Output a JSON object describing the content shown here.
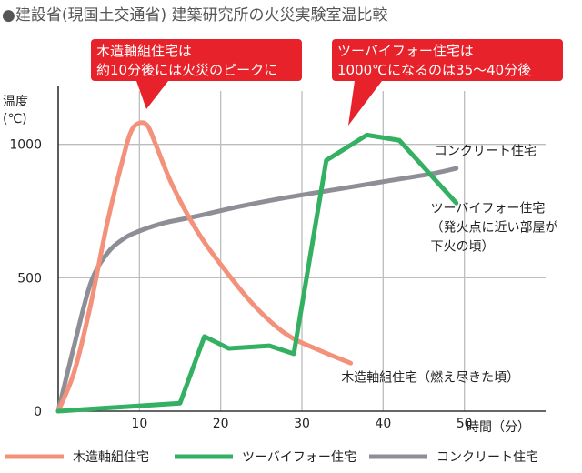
{
  "heading": "●建設省(現国土交通省) 建築研究所の火災実験室温比較",
  "callouts": [
    {
      "lines": [
        "木造軸組住宅は",
        "約10分後には火災のピークに"
      ]
    },
    {
      "lines": [
        "ツーバイフォー住宅は",
        "1000℃になるのは35〜40分後"
      ]
    }
  ],
  "colors": {
    "wood": "#f4917a",
    "twobyfour": "#33b061",
    "concrete": "#8e8e96",
    "callout": "#e8222a",
    "grid": "#bdbdbd",
    "axis": "#333333"
  },
  "chart_data": {
    "type": "line",
    "ylabel": [
      "温度",
      "(℃)"
    ],
    "xlabel": "時間（分）",
    "xlim": [
      0,
      60
    ],
    "ylim": [
      0,
      1200
    ],
    "xticks": [
      10,
      20,
      30,
      40,
      50
    ],
    "yticks": [
      0,
      500,
      1000
    ],
    "series": [
      {
        "key": "wood",
        "name": "木造軸組住宅",
        "smooth": true,
        "x": [
          0,
          2,
          4,
          6,
          8,
          9,
          10,
          11,
          12,
          14,
          17,
          20,
          24,
          28,
          32,
          36
        ],
        "y": [
          0,
          150,
          400,
          700,
          950,
          1050,
          1080,
          1070,
          1000,
          850,
          680,
          550,
          400,
          290,
          230,
          180
        ],
        "annotation": {
          "lines": [
            "木造軸組住宅（燃え尽きた頃）"
          ],
          "x": 34.5,
          "y": 110
        }
      },
      {
        "key": "twobyfour",
        "name": "ツーバイフォー住宅",
        "smooth": false,
        "x": [
          0,
          15,
          18,
          21,
          26,
          29,
          33,
          38,
          42,
          49
        ],
        "y": [
          0,
          30,
          280,
          235,
          245,
          215,
          940,
          1035,
          1015,
          780
        ],
        "annotation": {
          "lines": [
            "ツーバイフォー住宅",
            "（発火点に近い部屋が",
            "下火の頃）"
          ],
          "x": 45.5,
          "y": 745
        }
      },
      {
        "key": "concrete",
        "name": "コンクリート住宅",
        "smooth": true,
        "x": [
          0,
          2,
          4,
          6,
          8,
          10,
          13,
          17,
          22,
          28,
          34,
          40,
          46,
          49
        ],
        "y": [
          0,
          250,
          480,
          590,
          645,
          675,
          705,
          730,
          765,
          800,
          830,
          860,
          890,
          910
        ],
        "annotation": {
          "lines": [
            "コンクリート住宅"
          ],
          "x": 46,
          "y": 960
        }
      }
    ],
    "legend": {
      "position": "bottom"
    }
  }
}
